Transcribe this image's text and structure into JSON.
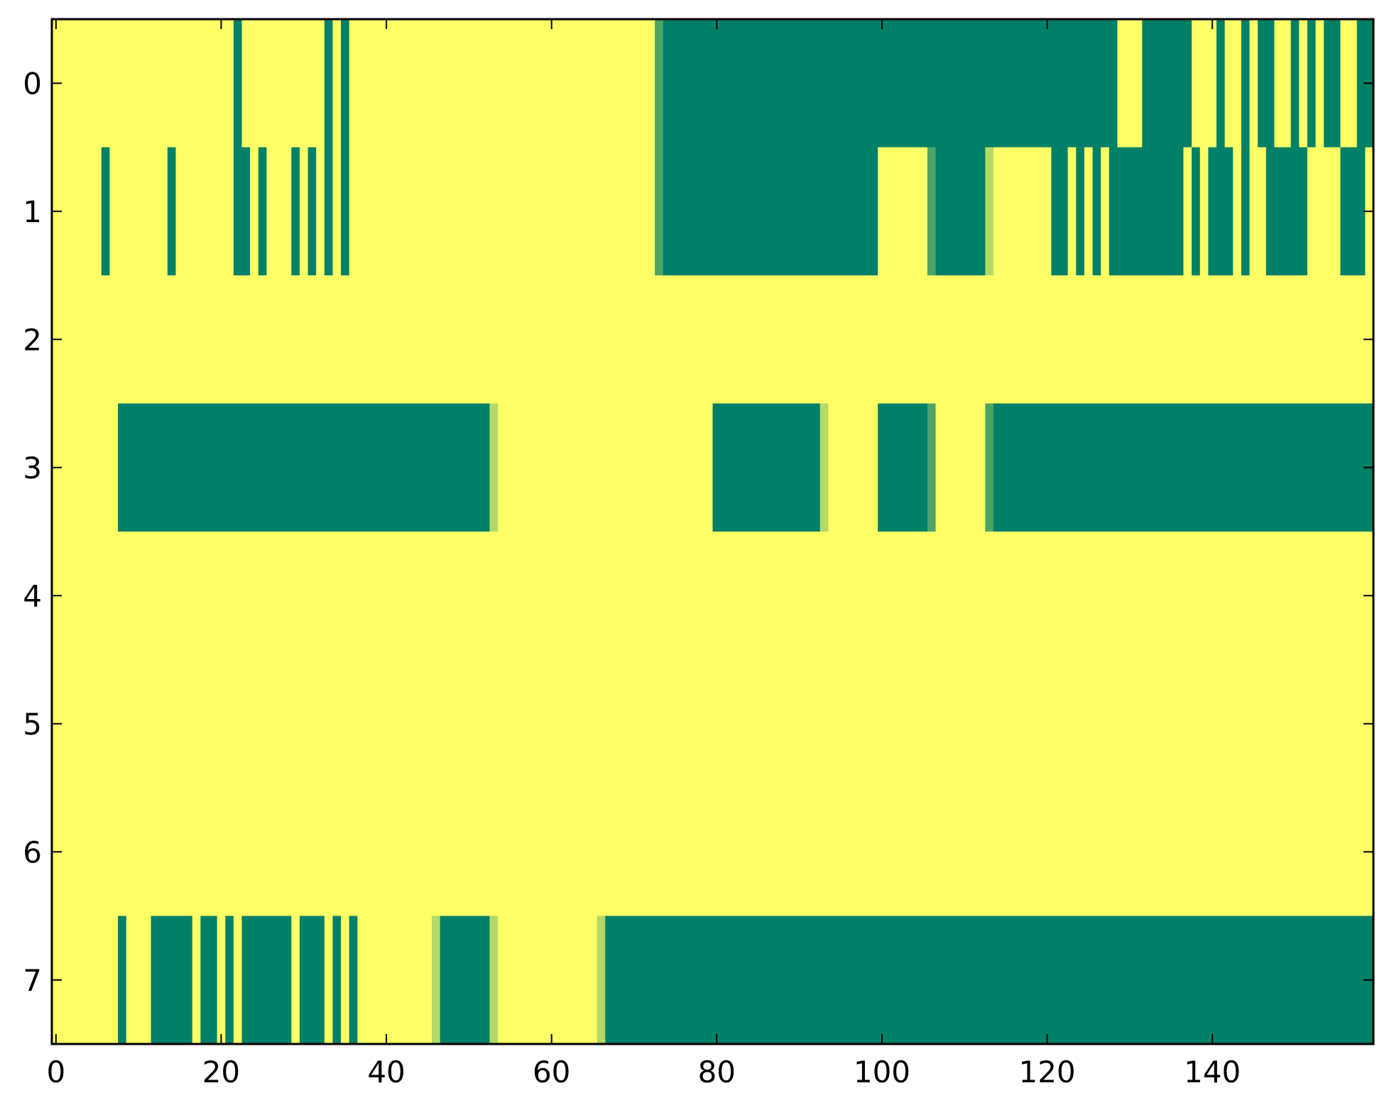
{
  "chart_data": {
    "type": "heatmap",
    "title": "",
    "xlabel": "",
    "ylabel": "",
    "xlim": [
      -0.5,
      159.5
    ],
    "ylim": [
      7.5,
      -0.5
    ],
    "x_ticks": [
      0,
      20,
      40,
      60,
      80,
      100,
      120,
      140
    ],
    "y_ticks": [
      0,
      1,
      2,
      3,
      4,
      5,
      6,
      7
    ],
    "grid": false,
    "legend": "none",
    "colormap": "summer",
    "colors": {
      "low": "#008066",
      "mid_low": "#4ca466",
      "mid_high": "#b4d966",
      "high": "#ffff66",
      "axes": "#000000"
    },
    "n_columns": 160,
    "rows": [
      {
        "row": 0,
        "default_value": 1,
        "segments": [
          [
            22,
            22,
            0
          ],
          [
            33,
            33,
            0
          ],
          [
            35,
            35,
            0
          ],
          [
            73,
            73,
            0.3
          ],
          [
            74,
            128,
            0
          ],
          [
            132,
            137,
            0
          ],
          [
            141,
            141,
            0
          ],
          [
            144,
            144,
            0
          ],
          [
            146,
            147,
            0
          ],
          [
            150,
            150,
            0
          ],
          [
            152,
            152,
            0
          ],
          [
            154,
            155,
            0
          ],
          [
            158,
            159,
            0
          ]
        ]
      },
      {
        "row": 1,
        "default_value": 1,
        "segments": [
          [
            6,
            6,
            0
          ],
          [
            14,
            14,
            0
          ],
          [
            22,
            23,
            0
          ],
          [
            25,
            25,
            0
          ],
          [
            29,
            29,
            0
          ],
          [
            31,
            31,
            0
          ],
          [
            33,
            33,
            0
          ],
          [
            35,
            35,
            0
          ],
          [
            73,
            73,
            0.3
          ],
          [
            74,
            99,
            0
          ],
          [
            106,
            106,
            0.3
          ],
          [
            107,
            112,
            0
          ],
          [
            113,
            113,
            0.7
          ],
          [
            121,
            122,
            0
          ],
          [
            124,
            124,
            0
          ],
          [
            126,
            126,
            0
          ],
          [
            128,
            136,
            0
          ],
          [
            138,
            138,
            0
          ],
          [
            140,
            142,
            0
          ],
          [
            144,
            144,
            0
          ],
          [
            147,
            151,
            0
          ],
          [
            156,
            158,
            0
          ],
          [
            159,
            159,
            1
          ]
        ]
      },
      {
        "row": 2,
        "default_value": 1,
        "segments": []
      },
      {
        "row": 3,
        "default_value": 1,
        "segments": [
          [
            8,
            52,
            0
          ],
          [
            53,
            53,
            0.7
          ],
          [
            80,
            92,
            0
          ],
          [
            93,
            93,
            0.7
          ],
          [
            100,
            105,
            0
          ],
          [
            106,
            106,
            0.3
          ],
          [
            113,
            113,
            0.3
          ],
          [
            114,
            159,
            0
          ]
        ]
      },
      {
        "row": 4,
        "default_value": 1,
        "segments": []
      },
      {
        "row": 5,
        "default_value": 1,
        "segments": []
      },
      {
        "row": 6,
        "default_value": 1,
        "segments": []
      },
      {
        "row": 7,
        "default_value": 1,
        "segments": [
          [
            8,
            8,
            0
          ],
          [
            12,
            16,
            0
          ],
          [
            18,
            19,
            0
          ],
          [
            21,
            21,
            0
          ],
          [
            23,
            28,
            0
          ],
          [
            30,
            32,
            0
          ],
          [
            34,
            34,
            0
          ],
          [
            36,
            36,
            0
          ],
          [
            46,
            46,
            0.7
          ],
          [
            47,
            52,
            0
          ],
          [
            53,
            53,
            0.7
          ],
          [
            66,
            66,
            0.7
          ],
          [
            67,
            159,
            0
          ]
        ]
      }
    ]
  }
}
